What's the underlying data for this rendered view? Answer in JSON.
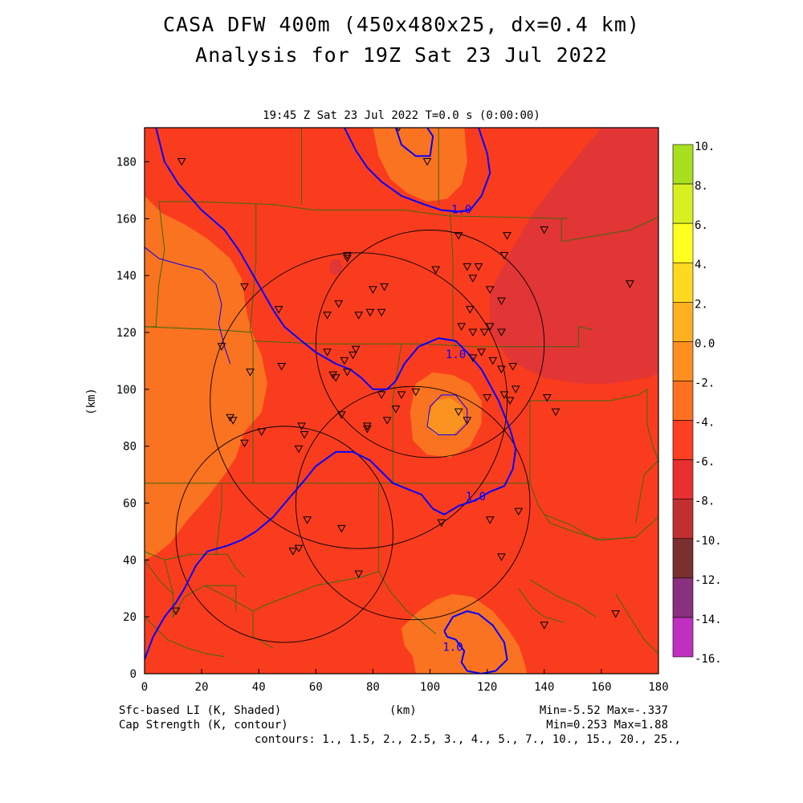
{
  "header": {
    "title_line1": "CASA DFW 400m (450x480x25, dx=0.4 km)",
    "title_line2": "Analysis for 19Z Sat 23 Jul 2022",
    "subtitle": "19:45 Z Sat 23 Jul 2022   T=0.0 s (0:00:00)"
  },
  "footer": {
    "shaded_label": "Sfc-based LI (K, Shaded)",
    "contour_label": "Cap Strength (K, contour)",
    "xunits": "(km)",
    "shaded_range": "Min=-5.52 Max=-.337",
    "contour_range": "Min=0.253 Max=1.88",
    "contours": "contours: 1., 1.5, 2., 2.5, 3., 4., 5., 7., 10., 15., 20., 25.,"
  },
  "chart_data": {
    "type": "heatmap",
    "ylabel": "(km)",
    "xlabel": "(km)",
    "xlim": [
      0,
      180
    ],
    "ylim": [
      0,
      192
    ],
    "x_ticks": [
      0,
      20,
      40,
      60,
      80,
      100,
      120,
      140,
      160,
      180
    ],
    "y_ticks": [
      0,
      20,
      40,
      60,
      80,
      100,
      120,
      140,
      160,
      180
    ],
    "x_tick_labels": [
      "0",
      "20",
      "40",
      "60",
      "80",
      "100",
      "120",
      "140",
      "160",
      "180"
    ],
    "y_tick_labels": [
      "0",
      "20",
      "40",
      "60",
      "80",
      "100",
      "120",
      "140",
      "160",
      "180"
    ],
    "colorbar": {
      "labels": [
        "10.",
        "8.",
        "6.",
        "4.",
        "2.",
        "0.0",
        "-2.",
        "-4.",
        "-6.",
        "-8.",
        "-10.",
        "-12.",
        "-14.",
        "-16."
      ],
      "colors": [
        "#a8e020",
        "#d8f020",
        "#ffff20",
        "#ffd820",
        "#ffb020",
        "#ff9020",
        "#ff7020",
        "#ff4020",
        "#e83030",
        "#c03030",
        "#7a3030",
        "#8a3080",
        "#c030c0",
        "#e040e0"
      ]
    },
    "colors": {
      "base": "#fa3c1e",
      "orange": "#fa7320",
      "light_orange": "#fb9320",
      "dark_red": "#e23535",
      "contour": "#0000ff",
      "county": "#3b6a10",
      "ring": "#000000"
    },
    "contour_labels": [
      {
        "text": "1.0",
        "x": 111,
        "y": 162
      },
      {
        "text": "1.0",
        "x": 109,
        "y": 111
      },
      {
        "text": "1.0",
        "x": 116,
        "y": 61
      },
      {
        "text": "1.0",
        "x": 108,
        "y": 8
      }
    ],
    "contour_lines": [
      [
        [
          70,
          192
        ],
        [
          74,
          184
        ],
        [
          78,
          178
        ],
        [
          83,
          173
        ],
        [
          90,
          168
        ],
        [
          98,
          165
        ],
        [
          104,
          163
        ],
        [
          110,
          162.5
        ]
      ],
      [
        [
          110,
          162.5
        ],
        [
          114,
          163
        ],
        [
          118,
          168
        ],
        [
          121,
          176
        ],
        [
          120,
          183
        ],
        [
          117,
          192
        ]
      ],
      [
        [
          0,
          5
        ],
        [
          3,
          13
        ],
        [
          7,
          20
        ],
        [
          11,
          25
        ],
        [
          14,
          30
        ],
        [
          18,
          38
        ],
        [
          22,
          43
        ],
        [
          29,
          45
        ],
        [
          34,
          47
        ],
        [
          39,
          50
        ],
        [
          45,
          55
        ],
        [
          50,
          61
        ],
        [
          56,
          68
        ],
        [
          60,
          73
        ],
        [
          67,
          78
        ],
        [
          73,
          78
        ],
        [
          79,
          75
        ],
        [
          83,
          71
        ],
        [
          87,
          67
        ],
        [
          92,
          65
        ],
        [
          97,
          63
        ],
        [
          101,
          58
        ],
        [
          105,
          56
        ],
        [
          110,
          59
        ],
        [
          116,
          61
        ],
        [
          121,
          64
        ],
        [
          126,
          66
        ],
        [
          129,
          72
        ],
        [
          130,
          79
        ],
        [
          128,
          86
        ],
        [
          124,
          96
        ],
        [
          118,
          107
        ],
        [
          113,
          113
        ],
        [
          109,
          117
        ],
        [
          103,
          118
        ],
        [
          96,
          115
        ],
        [
          91,
          109
        ],
        [
          88,
          103
        ],
        [
          85,
          100
        ],
        [
          80,
          100
        ],
        [
          76,
          104
        ],
        [
          72,
          107
        ],
        [
          67,
          109
        ],
        [
          60,
          113
        ],
        [
          55,
          117
        ],
        [
          49,
          122
        ],
        [
          45,
          128
        ],
        [
          41,
          135
        ],
        [
          37,
          142
        ],
        [
          33,
          149
        ],
        [
          28,
          156
        ],
        [
          20,
          163
        ],
        [
          12,
          172
        ],
        [
          7,
          180
        ],
        [
          4,
          192
        ]
      ],
      [
        [
          0,
          150
        ],
        [
          5,
          146
        ],
        [
          12,
          144
        ],
        [
          20,
          142
        ],
        [
          25,
          137
        ],
        [
          27,
          130
        ],
        [
          26,
          123
        ],
        [
          28,
          115
        ],
        [
          30,
          109
        ]
      ],
      [
        [
          100,
          94
        ],
        [
          104,
          98
        ],
        [
          109,
          98
        ],
        [
          113,
          93
        ],
        [
          113,
          88
        ],
        [
          109,
          84
        ],
        [
          103,
          84
        ],
        [
          99,
          87
        ],
        [
          100,
          94
        ]
      ],
      [
        [
          88,
          192
        ],
        [
          90,
          186
        ],
        [
          95,
          182
        ],
        [
          100,
          182
        ],
        [
          101,
          189
        ],
        [
          99,
          192
        ]
      ],
      [
        [
          105,
          15
        ],
        [
          108,
          20
        ],
        [
          113,
          22
        ],
        [
          117,
          21
        ],
        [
          122,
          17
        ],
        [
          126,
          11
        ],
        [
          127,
          5
        ],
        [
          123,
          1
        ],
        [
          118,
          0
        ],
        [
          113,
          1
        ],
        [
          111,
          4
        ],
        [
          112,
          8
        ],
        [
          109,
          12
        ],
        [
          106,
          13
        ],
        [
          105,
          15
        ]
      ]
    ],
    "range_rings": [
      {
        "cx": 75,
        "cy": 96,
        "r": 52
      },
      {
        "cx": 100,
        "cy": 116,
        "r": 40
      },
      {
        "cx": 49,
        "cy": 49,
        "r": 38
      },
      {
        "cx": 94,
        "cy": 60,
        "r": 41
      }
    ],
    "stations": [
      [
        13,
        180
      ],
      [
        89,
        192
      ],
      [
        99,
        180
      ],
      [
        110,
        154
      ],
      [
        127,
        154
      ],
      [
        140,
        156
      ],
      [
        126,
        147
      ],
      [
        71,
        147
      ],
      [
        71,
        146
      ],
      [
        117,
        143
      ],
      [
        113,
        143
      ],
      [
        115,
        139
      ],
      [
        102,
        142
      ],
      [
        84,
        136
      ],
      [
        80,
        135
      ],
      [
        121,
        135
      ],
      [
        170,
        137
      ],
      [
        35,
        136
      ],
      [
        47,
        128
      ],
      [
        68,
        130
      ],
      [
        64,
        126
      ],
      [
        79,
        127
      ],
      [
        75,
        126
      ],
      [
        83,
        127
      ],
      [
        125,
        131
      ],
      [
        114,
        128
      ],
      [
        111,
        122
      ],
      [
        115,
        120
      ],
      [
        119,
        120
      ],
      [
        121,
        122
      ],
      [
        125,
        120
      ],
      [
        118,
        113
      ],
      [
        115,
        111
      ],
      [
        122,
        110
      ],
      [
        125,
        107
      ],
      [
        129,
        108
      ],
      [
        128,
        96
      ],
      [
        130,
        100
      ],
      [
        126,
        98
      ],
      [
        120,
        97
      ],
      [
        110,
        92
      ],
      [
        113,
        89
      ],
      [
        141,
        97
      ],
      [
        144,
        92
      ],
      [
        27,
        115
      ],
      [
        37,
        106
      ],
      [
        48,
        108
      ],
      [
        64,
        113
      ],
      [
        74,
        114
      ],
      [
        70,
        110
      ],
      [
        71,
        106
      ],
      [
        66,
        105
      ],
      [
        67,
        104
      ],
      [
        69,
        91
      ],
      [
        73,
        112
      ],
      [
        83,
        98
      ],
      [
        90,
        98
      ],
      [
        85,
        89
      ],
      [
        78,
        86
      ],
      [
        78,
        87
      ],
      [
        95,
        99
      ],
      [
        88,
        93
      ],
      [
        30,
        90
      ],
      [
        31,
        89
      ],
      [
        35,
        81
      ],
      [
        55,
        87
      ],
      [
        56,
        84
      ],
      [
        41,
        85
      ],
      [
        54,
        79
      ],
      [
        57,
        54
      ],
      [
        52,
        43
      ],
      [
        54,
        44
      ],
      [
        69,
        51
      ],
      [
        75,
        35
      ],
      [
        104,
        53
      ],
      [
        121,
        54
      ],
      [
        125,
        41
      ],
      [
        131,
        57
      ],
      [
        11,
        22
      ],
      [
        140,
        17
      ],
      [
        165,
        21
      ]
    ],
    "counties": [
      [
        [
          5,
          166
        ],
        [
          18,
          166
        ],
        [
          45,
          165
        ],
        [
          60,
          163
        ],
        [
          91,
          163
        ]
      ],
      [
        [
          55,
          192
        ],
        [
          55,
          176
        ],
        [
          55,
          165
        ]
      ],
      [
        [
          103,
          192
        ],
        [
          103,
          176
        ],
        [
          103,
          165
        ]
      ],
      [
        [
          91,
          163
        ],
        [
          106,
          161
        ],
        [
          148,
          160
        ]
      ],
      [
        [
          146,
          160
        ],
        [
          146,
          152
        ],
        [
          170,
          156
        ],
        [
          181,
          161
        ]
      ],
      [
        [
          5,
          166
        ],
        [
          7,
          149
        ],
        [
          5,
          137
        ],
        [
          4,
          122
        ],
        [
          0,
          122
        ]
      ],
      [
        [
          0,
          122
        ],
        [
          25,
          121
        ],
        [
          38,
          120
        ]
      ],
      [
        [
          39,
          165
        ],
        [
          39,
          145
        ],
        [
          37,
          121
        ],
        [
          38,
          117
        ]
      ],
      [
        [
          38,
          117
        ],
        [
          38,
          108
        ],
        [
          38,
          91
        ],
        [
          38,
          67
        ]
      ],
      [
        [
          38,
          117
        ],
        [
          61,
          116
        ],
        [
          88,
          116
        ]
      ],
      [
        [
          88,
          116
        ],
        [
          98,
          116
        ],
        [
          115,
          115
        ],
        [
          144,
          115
        ]
      ],
      [
        [
          88,
          116
        ],
        [
          90,
          116
        ],
        [
          87,
          97
        ],
        [
          87,
          74
        ],
        [
          87,
          67
        ]
      ],
      [
        [
          107,
          163
        ],
        [
          108,
          146
        ],
        [
          108,
          118
        ],
        [
          109,
          115
        ]
      ],
      [
        [
          144,
          115
        ],
        [
          152,
          115
        ],
        [
          152,
          122
        ],
        [
          157,
          121
        ]
      ],
      [
        [
          0,
          67
        ],
        [
          27,
          67
        ],
        [
          40,
          67
        ],
        [
          60,
          67
        ],
        [
          87,
          67
        ],
        [
          108,
          67
        ],
        [
          122,
          67
        ],
        [
          135,
          67
        ]
      ],
      [
        [
          135,
          67
        ],
        [
          135,
          83
        ],
        [
          135,
          96
        ],
        [
          163,
          96
        ],
        [
          173,
          98
        ],
        [
          176,
          100
        ]
      ],
      [
        [
          176,
          100
        ],
        [
          176,
          88
        ],
        [
          178,
          80
        ],
        [
          180,
          75
        ],
        [
          175,
          70
        ],
        [
          172,
          53
        ]
      ],
      [
        [
          135,
          67
        ],
        [
          138,
          59
        ],
        [
          142,
          53
        ],
        [
          150,
          50
        ],
        [
          160,
          47
        ],
        [
          172,
          48
        ]
      ],
      [
        [
          140,
          56
        ],
        [
          150,
          52
        ],
        [
          158,
          47
        ],
        [
          172,
          48
        ],
        [
          181,
          56
        ]
      ],
      [
        [
          27,
          67
        ],
        [
          27,
          59
        ],
        [
          25,
          42
        ],
        [
          29,
          42
        ],
        [
          32,
          37
        ],
        [
          35,
          34
        ]
      ],
      [
        [
          0,
          43
        ],
        [
          7,
          40
        ],
        [
          16,
          42
        ],
        [
          25,
          42
        ]
      ],
      [
        [
          7,
          40
        ],
        [
          10,
          28
        ],
        [
          10,
          20
        ],
        [
          14,
          27
        ],
        [
          21,
          31
        ],
        [
          32,
          31
        ],
        [
          32,
          22
        ]
      ],
      [
        [
          21,
          31
        ],
        [
          29,
          27
        ],
        [
          38,
          22
        ],
        [
          38,
          13
        ],
        [
          45,
          9
        ]
      ],
      [
        [
          38,
          22
        ],
        [
          42,
          24
        ],
        [
          60,
          31
        ],
        [
          76,
          34
        ],
        [
          82,
          36
        ]
      ],
      [
        [
          82,
          36
        ],
        [
          86,
          29
        ],
        [
          92,
          22
        ],
        [
          96,
          19
        ],
        [
          102,
          14
        ]
      ],
      [
        [
          82,
          67
        ],
        [
          82,
          53
        ],
        [
          82,
          36
        ]
      ],
      [
        [
          0,
          20
        ],
        [
          8,
          12
        ],
        [
          15,
          9
        ],
        [
          22,
          7
        ],
        [
          28,
          6
        ]
      ],
      [
        [
          135,
          33
        ],
        [
          140,
          30
        ],
        [
          145,
          27
        ],
        [
          152,
          24
        ],
        [
          158,
          20
        ]
      ],
      [
        [
          165,
          28
        ],
        [
          170,
          20
        ],
        [
          175,
          12
        ],
        [
          180,
          7
        ]
      ],
      [
        [
          0,
          40
        ],
        [
          5,
          33
        ],
        [
          10,
          28
        ]
      ],
      [
        [
          131,
          30
        ],
        [
          136,
          23
        ],
        [
          140,
          20
        ],
        [
          147,
          18
        ]
      ]
    ]
  }
}
